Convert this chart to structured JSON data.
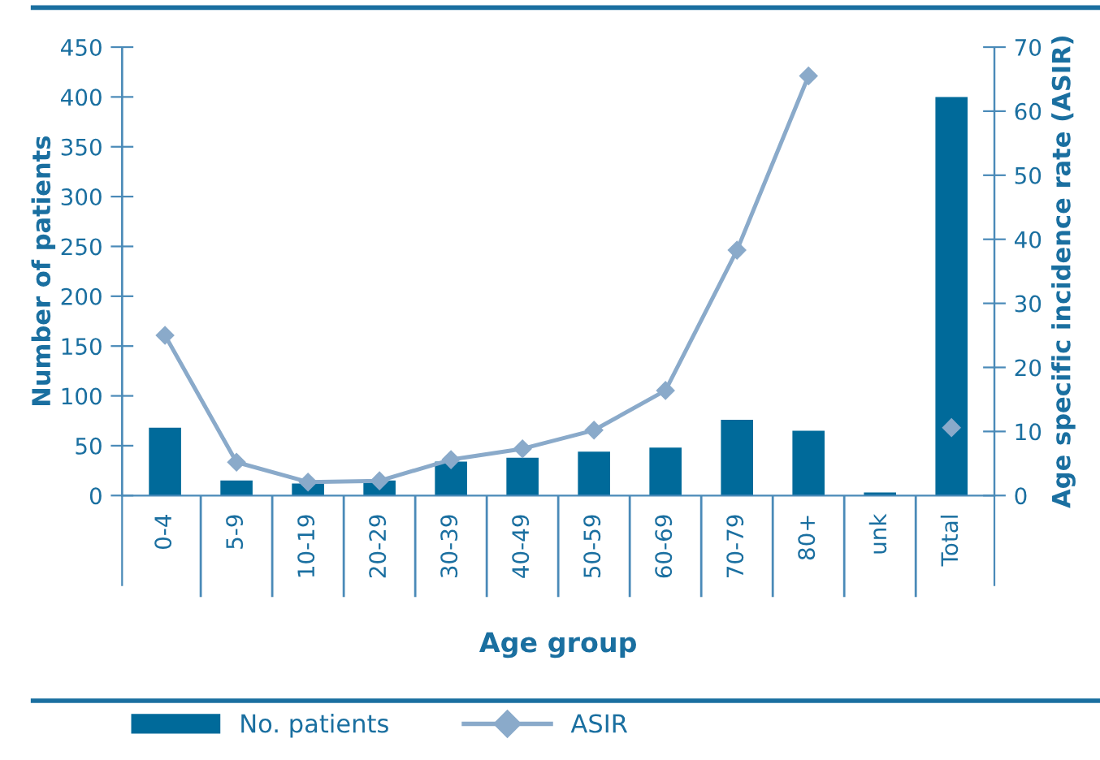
{
  "chart_data": {
    "type": "bar",
    "xlabel": "Age group",
    "ylabel": "Number of patients",
    "y2label": "Age specific incidence rate (ASIR)",
    "categories": [
      "0-4",
      "5-9",
      "10-19",
      "20-29",
      "30-39",
      "40-49",
      "50-59",
      "60-69",
      "70-79",
      "80+",
      "unk",
      "Total"
    ],
    "series": [
      {
        "name": "No. patients",
        "color": "#006a9a",
        "values": [
          68,
          15,
          12,
          15,
          34,
          38,
          44,
          48,
          76,
          65,
          3,
          400
        ]
      },
      {
        "name": "ASIR",
        "type": "line",
        "axis": "y2",
        "color": "#8aaaca",
        "marker": "diamond",
        "line_style": "solid",
        "values": [
          25,
          5.2,
          2.1,
          2.3,
          5.6,
          7.3,
          10.2,
          16.4,
          38.3,
          65.5,
          null,
          10.6
        ]
      }
    ],
    "ylim": [
      0,
      450
    ],
    "yticks": [
      0,
      50,
      100,
      150,
      200,
      250,
      300,
      350,
      400,
      450
    ],
    "y2lim": [
      0,
      70
    ],
    "y2ticks": [
      0,
      10,
      20,
      30,
      40,
      50,
      60,
      70
    ],
    "grid": false,
    "legend": "bottom"
  }
}
